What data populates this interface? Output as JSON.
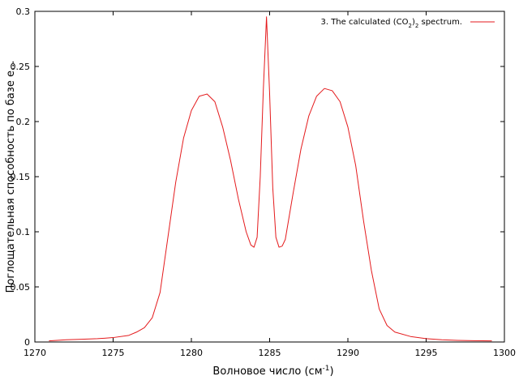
{
  "chart_data": {
    "type": "line",
    "xlabel": "Волновое число (см",
    "xlabel_sup": "-1",
    "xlabel_tail": ")",
    "ylabel": "Поглощательная способность по базе е...",
    "xlim": [
      1270,
      1300
    ],
    "ylim": [
      0,
      0.3
    ],
    "xticks": [
      "1270",
      "1275",
      "1280",
      "1285",
      "1290",
      "1295",
      "1300"
    ],
    "yticks": [
      "0",
      "0.05",
      "0.1",
      "0.15",
      "0.2",
      "0.25",
      "0.3"
    ],
    "legend": {
      "position": "top-right",
      "text_main": "3. The calculated (CO",
      "text_sub1": "2",
      "text_mid": ")",
      "text_sub2": "2",
      "text_tail": " spectrum."
    },
    "series": [
      {
        "color": "#e41a1c",
        "x": [
          1270.9,
          1272,
          1273,
          1274,
          1275,
          1276,
          1276.5,
          1277,
          1277.5,
          1278,
          1278.5,
          1279,
          1279.5,
          1280,
          1280.5,
          1281,
          1281.5,
          1282,
          1282.5,
          1283,
          1283.5,
          1283.8,
          1284.0,
          1284.2,
          1284.4,
          1284.6,
          1284.8,
          1285.0,
          1285.2,
          1285.4,
          1285.6,
          1285.8,
          1286.0,
          1286.5,
          1287,
          1287.5,
          1288,
          1288.5,
          1289,
          1289.5,
          1290,
          1290.5,
          1291,
          1291.5,
          1292,
          1292.5,
          1293,
          1294,
          1295,
          1296,
          1297,
          1298,
          1299.2
        ],
        "y": [
          0.001,
          0.002,
          0.0025,
          0.003,
          0.004,
          0.006,
          0.009,
          0.013,
          0.022,
          0.045,
          0.095,
          0.145,
          0.185,
          0.21,
          0.223,
          0.225,
          0.218,
          0.195,
          0.165,
          0.13,
          0.1,
          0.088,
          0.086,
          0.095,
          0.15,
          0.23,
          0.295,
          0.225,
          0.14,
          0.095,
          0.086,
          0.087,
          0.093,
          0.135,
          0.175,
          0.205,
          0.223,
          0.23,
          0.228,
          0.218,
          0.195,
          0.16,
          0.11,
          0.065,
          0.03,
          0.015,
          0.009,
          0.005,
          0.003,
          0.002,
          0.0015,
          0.0012,
          0.001
        ]
      }
    ]
  }
}
